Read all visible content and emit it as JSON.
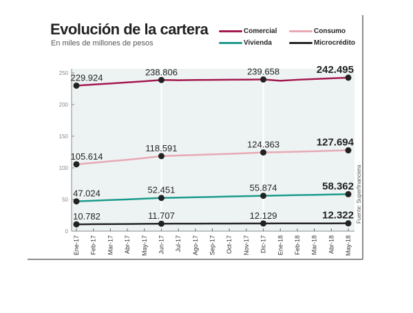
{
  "chart_data": {
    "type": "line",
    "title": "Evolución de la cartera",
    "subtitle": "En miles de millones de pesos",
    "source": "Fuente: Superfinanciera",
    "ylim": [
      0,
      250
    ],
    "yticks": [
      "0",
      "50",
      "100",
      "150",
      "200",
      "250"
    ],
    "categories": [
      "Ene-17",
      "Feb-17",
      "Mar-17",
      "Abr-17",
      "May-17",
      "Jun-17",
      "Jul-17",
      "Ago-17",
      "Sep-17",
      "Oct-17",
      "Nov-17",
      "Dic-17",
      "Ene-18",
      "Feb-18",
      "Mar-18",
      "Abr-18",
      "May-18"
    ],
    "marked_indices": [
      0,
      5,
      11,
      16
    ],
    "legend_placement": "top-right",
    "series": [
      {
        "name": "Comercial",
        "color": "#a3174f",
        "values": [
          229.924,
          231.6,
          233.3,
          235.0,
          236.8,
          238.806,
          238.5,
          238.8,
          239.0,
          239.2,
          239.4,
          239.658,
          237.6,
          239.2,
          240.3,
          241.4,
          242.495
        ],
        "labels": [
          "229.924",
          "238.806",
          "239.658",
          "242.495"
        ]
      },
      {
        "name": "Consumo",
        "color": "#e8a9b4",
        "values": [
          105.614,
          108.0,
          110.4,
          112.8,
          115.5,
          118.591,
          119.5,
          120.4,
          121.3,
          122.2,
          123.2,
          124.363,
          124.8,
          125.5,
          126.2,
          127.0,
          127.694
        ],
        "labels": [
          "105.614",
          "118.591",
          "124.363",
          "127.694"
        ]
      },
      {
        "name": "Vivienda",
        "color": "#1a9a8a",
        "values": [
          47.024,
          48.1,
          49.2,
          50.2,
          51.3,
          52.451,
          53.0,
          53.6,
          54.1,
          54.7,
          55.3,
          55.874,
          56.4,
          56.9,
          57.4,
          57.9,
          58.362
        ],
        "labels": [
          "47.024",
          "52.451",
          "55.874",
          "58.362"
        ]
      },
      {
        "name": "Microcrédito",
        "color": "#222222",
        "values": [
          10.782,
          10.97,
          11.15,
          11.33,
          11.52,
          11.707,
          11.78,
          11.85,
          11.92,
          11.99,
          12.06,
          12.129,
          12.17,
          12.21,
          12.25,
          12.29,
          12.322
        ],
        "labels": [
          "10.782",
          "11.707",
          "12.129",
          "12.322"
        ]
      }
    ]
  }
}
